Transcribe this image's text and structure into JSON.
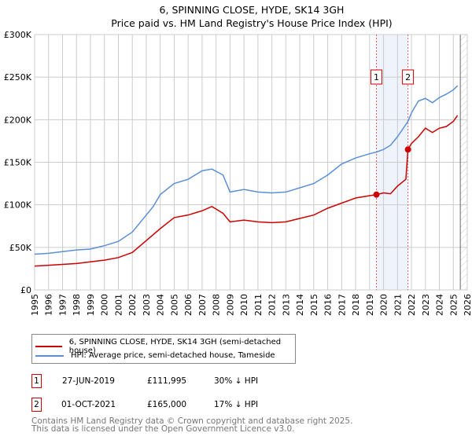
{
  "title": "6, SPINNING CLOSE, HYDE, SK14 3GH",
  "subtitle": "Price paid vs. HM Land Registry's House Price Index (HPI)",
  "chart_data": {
    "type": "line",
    "title": "6, SPINNING CLOSE, HYDE, SK14 3GH — Price paid vs. HM Land Registry's House Price Index (HPI)",
    "xlim": [
      1995,
      2026
    ],
    "ylim": [
      0,
      300000
    ],
    "x_ticks": [
      "1995",
      "1996",
      "1997",
      "1998",
      "1999",
      "2000",
      "2001",
      "2002",
      "2003",
      "2004",
      "2005",
      "2006",
      "2007",
      "2008",
      "2009",
      "2010",
      "2011",
      "2012",
      "2013",
      "2014",
      "2015",
      "2016",
      "2017",
      "2018",
      "2019",
      "2020",
      "2021",
      "2022",
      "2023",
      "2024",
      "2025",
      "2026"
    ],
    "y_ticks": [
      {
        "v": 0,
        "label": "£0"
      },
      {
        "v": 50000,
        "label": "£50K"
      },
      {
        "v": 100000,
        "label": "£100K"
      },
      {
        "v": 150000,
        "label": "£150K"
      },
      {
        "v": 200000,
        "label": "£200K"
      },
      {
        "v": 250000,
        "label": "£250K"
      },
      {
        "v": 300000,
        "label": "£300K"
      }
    ],
    "grid": true,
    "series": [
      {
        "name": "6, SPINNING CLOSE, HYDE, SK14 3GH (semi-detached house)",
        "color": "#cc0000",
        "x": [
          1995,
          1996,
          1997,
          1998,
          1999,
          2000,
          2001,
          2002,
          2003,
          2004,
          2005,
          2006,
          2007,
          2007.7,
          2008.5,
          2009,
          2010,
          2011,
          2012,
          2013,
          2014,
          2015,
          2016,
          2017,
          2018,
          2019.49,
          2020,
          2020.5,
          2021,
          2021.6,
          2021.75,
          2022,
          2022.5,
          2023,
          2023.5,
          2024,
          2024.5,
          2025,
          2025.3
        ],
        "y": [
          28000,
          29000,
          30000,
          31000,
          33000,
          35000,
          38000,
          44000,
          58000,
          72000,
          85000,
          88000,
          93000,
          98000,
          90000,
          80000,
          82000,
          80000,
          79000,
          80000,
          84000,
          88000,
          96000,
          102000,
          108000,
          111995,
          114000,
          113000,
          122000,
          130000,
          165000,
          172000,
          180000,
          190000,
          185000,
          190000,
          192000,
          198000,
          205000
        ]
      },
      {
        "name": "HPI: Average price, semi-detached house, Tameside",
        "color": "#5b8fd6",
        "x": [
          1995,
          1996,
          1997,
          1998,
          1999,
          2000,
          2001,
          2002,
          2003,
          2003.5,
          2004,
          2005,
          2006,
          2007,
          2007.7,
          2008.5,
          2009,
          2010,
          2011,
          2012,
          2013,
          2014,
          2015,
          2016,
          2017,
          2018,
          2019,
          2019.49,
          2020,
          2020.5,
          2021,
          2021.75,
          2022,
          2022.5,
          2023,
          2023.5,
          2024,
          2024.5,
          2025,
          2025.3
        ],
        "y": [
          42000,
          43000,
          45000,
          47000,
          48000,
          52000,
          57000,
          68000,
          88000,
          98000,
          112000,
          125000,
          130000,
          140000,
          142000,
          135000,
          115000,
          118000,
          115000,
          114000,
          115000,
          120000,
          125000,
          135000,
          148000,
          155000,
          160000,
          162000,
          165000,
          170000,
          180000,
          198000,
          208000,
          222000,
          225000,
          220000,
          226000,
          230000,
          235000,
          240000
        ]
      }
    ],
    "transactions": [
      {
        "label": "1",
        "x": 2019.49,
        "price": 111995,
        "date": "27-JUN-2019",
        "price_text": "£111,995",
        "hpi_text": "30% ↓ HPI"
      },
      {
        "label": "2",
        "x": 2021.75,
        "price": 165000,
        "date": "01-OCT-2021",
        "price_text": "£165,000",
        "hpi_text": "17% ↓ HPI"
      }
    ],
    "legend_placement": "below"
  },
  "legend": {
    "red": "6, SPINNING CLOSE, HYDE, SK14 3GH (semi-detached house)",
    "blue": "HPI: Average price, semi-detached house, Tameside"
  },
  "footer": {
    "line1": "Contains HM Land Registry data © Crown copyright and database right 2025.",
    "line2": "This data is licensed under the Open Government Licence v3.0."
  }
}
